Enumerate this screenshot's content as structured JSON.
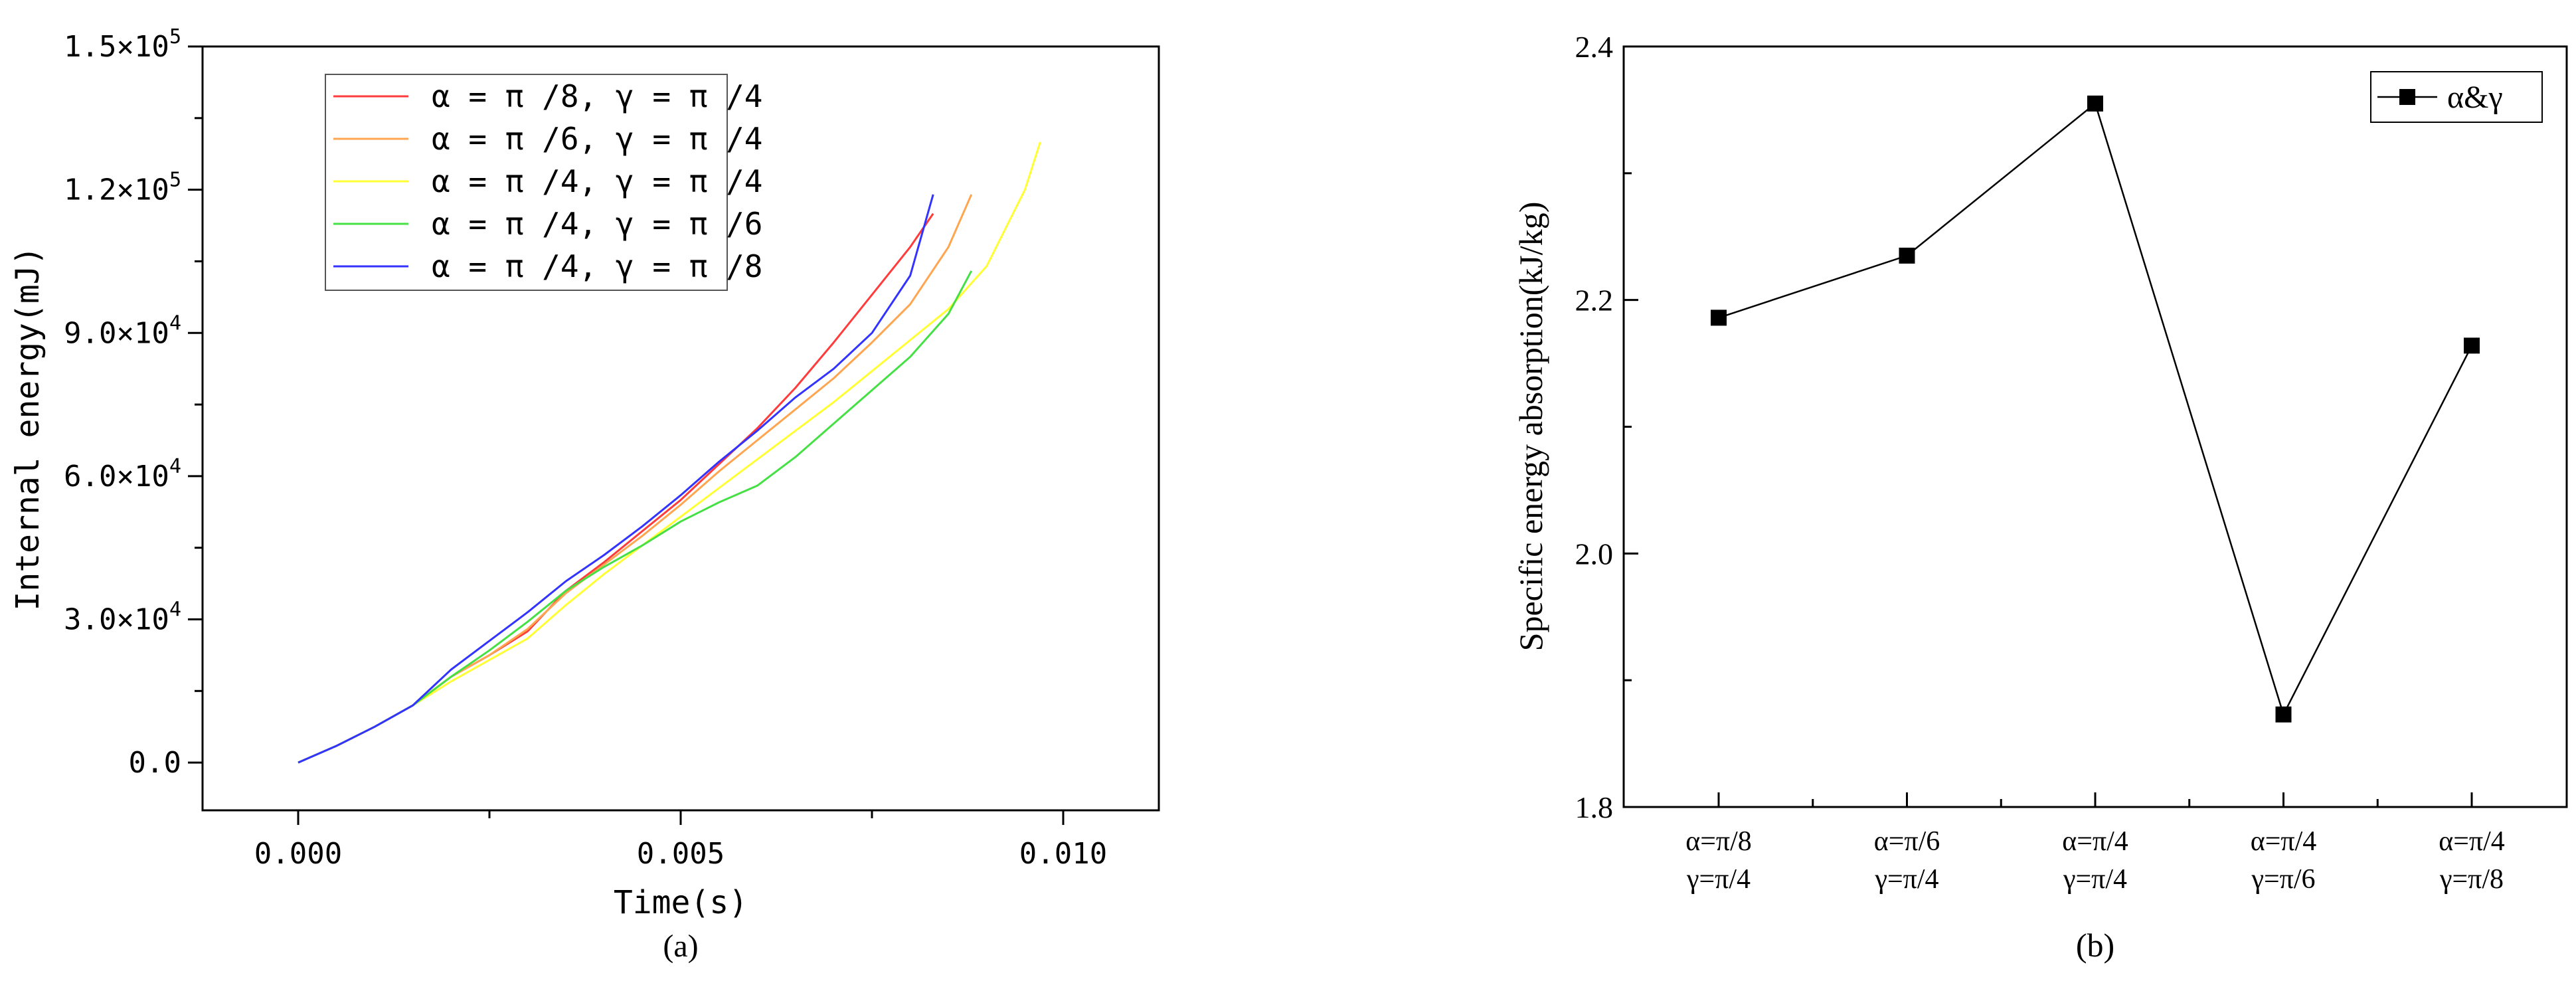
{
  "chart_data": [
    {
      "panel": "(a)",
      "type": "line",
      "title": "",
      "xlabel": "Time(s)",
      "ylabel": "Internal energy(mJ)",
      "xlim": [
        -0.00125,
        0.01125
      ],
      "ylim": [
        -10000,
        150000
      ],
      "xticks": [
        0.0,
        0.005,
        0.01
      ],
      "xtick_labels": [
        "0.000",
        "0.005",
        "0.010"
      ],
      "yticks": [
        0,
        30000,
        60000,
        90000,
        120000,
        150000
      ],
      "ytick_labels": [
        {
          "mantissa": "0.0",
          "exp": ""
        },
        {
          "mantissa": "3.0×10",
          "exp": "4"
        },
        {
          "mantissa": "6.0×10",
          "exp": "4"
        },
        {
          "mantissa": "9.0×10",
          "exp": "4"
        },
        {
          "mantissa": "1.2×10",
          "exp": "5"
        },
        {
          "mantissa": "1.5×10",
          "exp": "5"
        }
      ],
      "grid": false,
      "legend_position": "top-left",
      "series": [
        {
          "name": "α = π /8, γ = π /4",
          "color": "#ff3b3b",
          "x": [
            0,
            0.0005,
            0.001,
            0.0015,
            0.002,
            0.0025,
            0.003,
            0.0035,
            0.004,
            0.0045,
            0.005,
            0.0055,
            0.006,
            0.0065,
            0.007,
            0.0075,
            0.008,
            0.0083
          ],
          "y": [
            0,
            3500,
            7500,
            12000,
            18000,
            22500,
            27500,
            36000,
            42000,
            48500,
            55000,
            62500,
            70000,
            78500,
            88000,
            98000,
            108000,
            115000
          ]
        },
        {
          "name": "α = π /6, γ = π /4",
          "color": "#ffa54f",
          "x": [
            0,
            0.0005,
            0.001,
            0.0015,
            0.002,
            0.0025,
            0.003,
            0.0035,
            0.004,
            0.0045,
            0.005,
            0.0055,
            0.006,
            0.0065,
            0.007,
            0.0075,
            0.008,
            0.0085,
            0.0088
          ],
          "y": [
            0,
            3500,
            7500,
            12000,
            18000,
            22500,
            28000,
            35500,
            41500,
            47500,
            54000,
            61000,
            67500,
            74000,
            80500,
            88000,
            96000,
            108000,
            119000
          ]
        },
        {
          "name": "α = π /4, γ = π /4",
          "color": "#ffff33",
          "x": [
            0,
            0.0005,
            0.001,
            0.0015,
            0.002,
            0.0025,
            0.003,
            0.0035,
            0.004,
            0.0045,
            0.005,
            0.0055,
            0.006,
            0.0065,
            0.007,
            0.0075,
            0.008,
            0.0085,
            0.009,
            0.0095,
            0.0097
          ],
          "y": [
            0,
            3500,
            7500,
            12000,
            17000,
            21500,
            26000,
            33000,
            39500,
            45500,
            51500,
            57500,
            63500,
            69500,
            75500,
            82000,
            88500,
            95000,
            104000,
            120000,
            130000
          ]
        },
        {
          "name": "α = π /4, γ = π /6",
          "color": "#44e044",
          "x": [
            0,
            0.0005,
            0.001,
            0.0015,
            0.002,
            0.0025,
            0.003,
            0.0035,
            0.004,
            0.0045,
            0.005,
            0.0055,
            0.006,
            0.0065,
            0.007,
            0.0075,
            0.008,
            0.0085,
            0.0088
          ],
          "y": [
            0,
            3500,
            7500,
            12000,
            18000,
            23500,
            29500,
            36000,
            41000,
            45500,
            50500,
            54500,
            58000,
            64000,
            71000,
            78000,
            85000,
            94000,
            103000
          ]
        },
        {
          "name": "α = π /4, γ = π /8",
          "color": "#3333ff",
          "x": [
            0,
            0.0005,
            0.001,
            0.0015,
            0.0018,
            0.002,
            0.0025,
            0.003,
            0.0035,
            0.004,
            0.0045,
            0.005,
            0.0055,
            0.006,
            0.0065,
            0.007,
            0.0075,
            0.008,
            0.0083
          ],
          "y": [
            0,
            3500,
            7500,
            12000,
            16500,
            19500,
            25500,
            31500,
            38000,
            43500,
            49500,
            56000,
            63000,
            69500,
            76500,
            82500,
            90000,
            102000,
            119000
          ]
        }
      ]
    },
    {
      "panel": "(b)",
      "type": "line",
      "title": "",
      "xlabel": "",
      "ylabel": "Specific energy absorption(kJ/kg)",
      "ylim": [
        1.8,
        2.4
      ],
      "yticks": [
        1.8,
        2.0,
        2.2,
        2.4
      ],
      "ytick_labels": [
        "1.8",
        "2.0",
        "2.2",
        "2.4"
      ],
      "categories": [
        [
          "α=π/8",
          "γ=π/4"
        ],
        [
          "α=π/6",
          "γ=π/4"
        ],
        [
          "α=π/4",
          "γ=π/4"
        ],
        [
          "α=π/4",
          "γ=π/6"
        ],
        [
          "α=π/4",
          "γ=π/8"
        ]
      ],
      "grid": false,
      "legend_position": "top-right",
      "series": [
        {
          "name": "α&γ",
          "color": "#000000",
          "marker": "square",
          "values": [
            2.186,
            2.235,
            2.355,
            1.873,
            2.164
          ]
        }
      ]
    }
  ]
}
